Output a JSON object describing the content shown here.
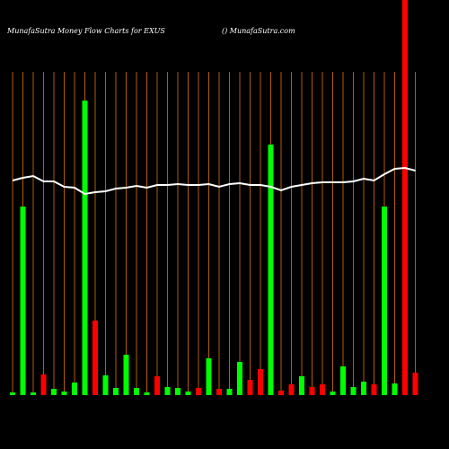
{
  "chart_data": {
    "type": "bar",
    "title": "MunafaSutra  Money Flow  Charts for EXUS",
    "subtitle": "() MunafaSutra.com",
    "categories": [
      null,
      null,
      null,
      null,
      null,
      null,
      null,
      null,
      null,
      null,
      null,
      null,
      null,
      null,
      null,
      null,
      null,
      null,
      null,
      null,
      null,
      null,
      null,
      null,
      null,
      null,
      null,
      null,
      null,
      null,
      null,
      null,
      null,
      null,
      null,
      null,
      null,
      null,
      null,
      null
    ],
    "values": [
      3,
      210,
      3,
      23,
      7,
      4,
      14,
      328,
      83,
      22,
      8,
      45,
      8,
      3,
      21,
      9,
      8,
      4,
      8,
      41,
      7,
      7,
      37,
      17,
      29,
      279,
      5,
      12,
      21,
      9,
      12,
      4,
      32,
      9,
      15,
      12,
      210,
      13,
      440,
      25
    ],
    "colors": [
      "#00ff00",
      "#00ff00",
      "#00ff00",
      "#ff0000",
      "#00ff00",
      "#00ff00",
      "#00ff00",
      "#00ff00",
      "#ff0000",
      "#00ff00",
      "#00ff00",
      "#00ff00",
      "#00ff00",
      "#00ff00",
      "#ff0000",
      "#00ff00",
      "#00ff00",
      "#00ff00",
      "#ff0000",
      "#00ff00",
      "#ff0000",
      "#00ff00",
      "#00ff00",
      "#ff0000",
      "#ff0000",
      "#00ff00",
      "#ff0000",
      "#ff0000",
      "#00ff00",
      "#ff0000",
      "#ff0000",
      "#00ff00",
      "#00ff00",
      "#00ff00",
      "#00ff00",
      "#ff0000",
      "#00ff00",
      "#00ff00",
      "#ff0000",
      "#ff0000"
    ],
    "line_values": [
      239,
      242,
      244,
      238,
      238,
      232,
      231,
      224,
      226,
      227,
      230,
      231,
      233,
      231,
      234,
      234,
      235,
      234,
      234,
      235,
      232,
      235,
      236,
      234,
      234,
      232,
      228,
      232,
      234,
      236,
      237,
      237,
      237,
      238,
      241,
      239,
      246,
      252,
      253,
      250
    ],
    "line_color": "#ffffff",
    "grid_color": "#b35c00",
    "ylim": [
      0,
      440
    ],
    "grid": true
  }
}
